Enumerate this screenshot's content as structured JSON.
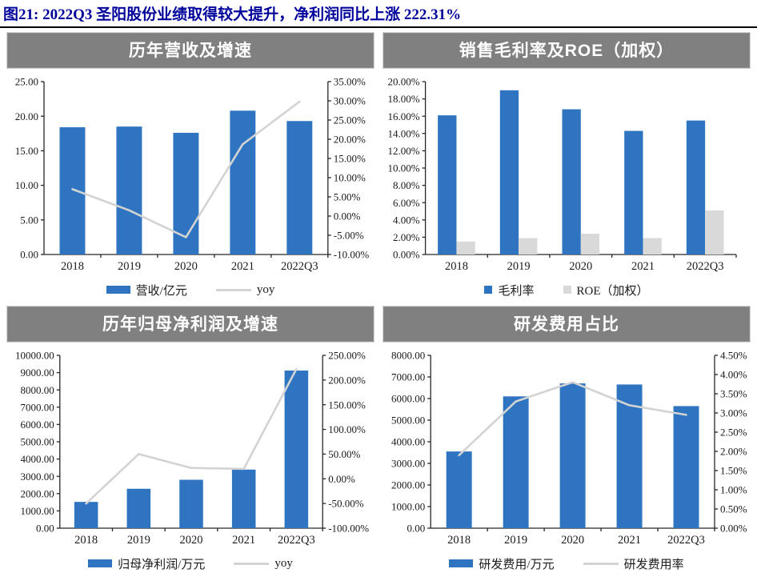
{
  "figure_title": "图21:  2022Q3 圣阳股份业绩取得较大提升，净利润同比上涨 222.31%",
  "colors": {
    "accent_blue": "#2E74C0",
    "series_gray": "#D9D9D9",
    "line_gray": "#D3D3D3",
    "header_bg": "#808080",
    "header_text": "#FFFFFF",
    "title_text": "#00009B",
    "axis_line": "#262626"
  },
  "chart_data": [
    {
      "type": "bar",
      "title": "历年营收及增速",
      "categories": [
        "2018",
        "2019",
        "2020",
        "2021",
        "2022Q3"
      ],
      "series": [
        {
          "name": "营收/亿元",
          "kind": "bar",
          "axis": "left",
          "color": "#2E74C0",
          "values": [
            18.4,
            18.5,
            17.6,
            20.8,
            19.3
          ]
        },
        {
          "name": "yoy",
          "kind": "line",
          "axis": "right",
          "color": "#D3D3D3",
          "values": [
            7.0,
            1.5,
            -5.5,
            18.7,
            29.8
          ]
        }
      ],
      "left_axis": {
        "min": 0,
        "max": 25,
        "step": 5,
        "decimals": 2,
        "suffix": ""
      },
      "right_axis": {
        "min": -10,
        "max": 35,
        "step": 5,
        "decimals": 2,
        "suffix": "%"
      },
      "legend_position": "bottom",
      "grid": false
    },
    {
      "type": "bar",
      "title": "销售毛利率及ROE（加权）",
      "categories": [
        "2018",
        "2019",
        "2020",
        "2021",
        "2022Q3"
      ],
      "series": [
        {
          "name": "毛利率",
          "kind": "bar",
          "axis": "left",
          "color": "#2E74C0",
          "values": [
            16.1,
            19.0,
            16.8,
            14.3,
            15.5
          ]
        },
        {
          "name": "ROE（加权）",
          "kind": "bar",
          "axis": "left",
          "color": "#D9D9D9",
          "values": [
            1.5,
            1.9,
            2.4,
            1.9,
            5.1
          ]
        }
      ],
      "left_axis": {
        "min": 0,
        "max": 20,
        "step": 2,
        "decimals": 2,
        "suffix": "%"
      },
      "right_axis": null,
      "legend_position": "bottom",
      "grid": false
    },
    {
      "type": "bar",
      "title": "历年归母净利润及增速",
      "categories": [
        "2018",
        "2019",
        "2020",
        "2021",
        "2022Q3"
      ],
      "series": [
        {
          "name": "归母净利润/万元",
          "kind": "bar",
          "axis": "left",
          "color": "#2E74C0",
          "values": [
            1520,
            2280,
            2800,
            3390,
            9120
          ]
        },
        {
          "name": "yoy",
          "kind": "line",
          "axis": "right",
          "color": "#D3D3D3",
          "values": [
            -50,
            50,
            22,
            20,
            222.31
          ]
        }
      ],
      "left_axis": {
        "min": 0,
        "max": 10000,
        "step": 1000,
        "decimals": 2,
        "suffix": ""
      },
      "right_axis": {
        "min": -100,
        "max": 250,
        "step": 50,
        "decimals": 2,
        "suffix": "%"
      },
      "legend_position": "bottom",
      "grid": false
    },
    {
      "type": "bar",
      "title": "研发费用占比",
      "categories": [
        "2018",
        "2019",
        "2020",
        "2021",
        "2022Q3"
      ],
      "series": [
        {
          "name": "研发费用/万元",
          "kind": "bar",
          "axis": "left",
          "color": "#2E74C0",
          "values": [
            3550,
            6100,
            6700,
            6650,
            5650
          ]
        },
        {
          "name": "研发费用率",
          "kind": "line",
          "axis": "right",
          "color": "#D3D3D3",
          "values": [
            1.9,
            3.3,
            3.8,
            3.2,
            2.95
          ]
        }
      ],
      "left_axis": {
        "min": 0,
        "max": 8000,
        "step": 1000,
        "decimals": 2,
        "suffix": ""
      },
      "right_axis": {
        "min": 0,
        "max": 4.5,
        "step": 0.5,
        "decimals": 2,
        "suffix": "%"
      },
      "legend_position": "bottom",
      "grid": false
    }
  ]
}
